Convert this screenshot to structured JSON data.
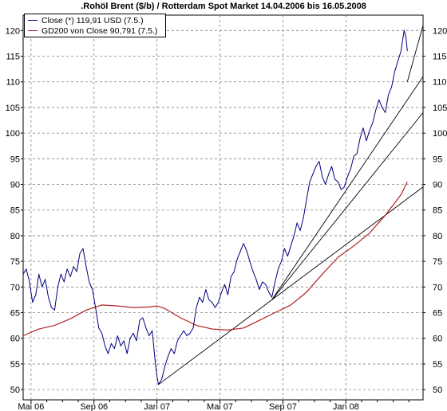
{
  "chart_data": {
    "type": "line",
    "title": ".Rohöl Brent ($/b) / Rotterdam Spot Market 14.04.2006 bis 16.05.2008",
    "xlabel": "",
    "ylabel": "",
    "ylim": [
      48,
      123
    ],
    "xlim": [
      0,
      25.4
    ],
    "y_ticks": [
      50,
      55,
      60,
      65,
      70,
      75,
      80,
      85,
      90,
      95,
      100,
      105,
      110,
      115,
      120
    ],
    "x_ticks": [
      {
        "label": "Mai 06",
        "x": 0.5
      },
      {
        "label": "Sep 06",
        "x": 4.5
      },
      {
        "label": "Jan 07",
        "x": 8.5
      },
      {
        "label": "Mai 07",
        "x": 12.5
      },
      {
        "label": "Sep 07",
        "x": 16.5
      },
      {
        "label": "Jan 08",
        "x": 20.5
      }
    ],
    "x_minor_ticks": [
      1.5,
      2.5,
      3.5,
      5.5,
      6.5,
      7.5,
      9.5,
      10.5,
      11.5,
      13.5,
      14.5,
      15.5,
      17.5,
      18.5,
      19.5,
      21.5,
      22.5,
      23.5,
      24.5
    ],
    "grid": true,
    "legend_position": "top-left",
    "series": [
      {
        "name": "Close (*) 119,91 USD (7.5.)",
        "color": "#000080",
        "points": [
          [
            0.0,
            72.5
          ],
          [
            0.2,
            73.5
          ],
          [
            0.4,
            71.0
          ],
          [
            0.6,
            67.0
          ],
          [
            0.8,
            68.5
          ],
          [
            1.0,
            72.5
          ],
          [
            1.2,
            70.0
          ],
          [
            1.4,
            71.5
          ],
          [
            1.6,
            68.0
          ],
          [
            1.8,
            66.0
          ],
          [
            2.0,
            65.5
          ],
          [
            2.2,
            70.0
          ],
          [
            2.4,
            72.5
          ],
          [
            2.6,
            71.0
          ],
          [
            2.8,
            73.5
          ],
          [
            3.0,
            72.0
          ],
          [
            3.2,
            74.0
          ],
          [
            3.4,
            73.0
          ],
          [
            3.6,
            76.5
          ],
          [
            3.8,
            77.5
          ],
          [
            4.0,
            74.0
          ],
          [
            4.2,
            71.0
          ],
          [
            4.4,
            69.5
          ],
          [
            4.6,
            66.0
          ],
          [
            4.8,
            62.0
          ],
          [
            5.0,
            61.0
          ],
          [
            5.2,
            58.5
          ],
          [
            5.4,
            57.0
          ],
          [
            5.6,
            59.0
          ],
          [
            5.8,
            58.0
          ],
          [
            6.0,
            60.5
          ],
          [
            6.2,
            58.5
          ],
          [
            6.4,
            59.5
          ],
          [
            6.6,
            57.0
          ],
          [
            6.8,
            60.0
          ],
          [
            7.0,
            61.0
          ],
          [
            7.2,
            59.5
          ],
          [
            7.4,
            63.5
          ],
          [
            7.6,
            64.0
          ],
          [
            7.8,
            62.0
          ],
          [
            8.0,
            60.5
          ],
          [
            8.2,
            61.5
          ],
          [
            8.4,
            55.0
          ],
          [
            8.5,
            52.5
          ],
          [
            8.6,
            51.0
          ],
          [
            8.8,
            52.0
          ],
          [
            9.0,
            54.5
          ],
          [
            9.2,
            56.5
          ],
          [
            9.4,
            58.0
          ],
          [
            9.6,
            57.0
          ],
          [
            9.8,
            59.5
          ],
          [
            10.0,
            60.5
          ],
          [
            10.2,
            61.5
          ],
          [
            10.4,
            60.5
          ],
          [
            10.6,
            61.0
          ],
          [
            10.8,
            62.0
          ],
          [
            11.0,
            66.0
          ],
          [
            11.2,
            68.0
          ],
          [
            11.4,
            67.0
          ],
          [
            11.6,
            69.5
          ],
          [
            11.8,
            67.5
          ],
          [
            12.0,
            67.0
          ],
          [
            12.2,
            66.0
          ],
          [
            12.4,
            67.0
          ],
          [
            12.6,
            69.0
          ],
          [
            12.8,
            70.5
          ],
          [
            13.0,
            68.5
          ],
          [
            13.2,
            72.0
          ],
          [
            13.4,
            73.0
          ],
          [
            13.6,
            75.5
          ],
          [
            13.8,
            77.0
          ],
          [
            14.0,
            78.5
          ],
          [
            14.2,
            77.0
          ],
          [
            14.4,
            75.0
          ],
          [
            14.6,
            73.0
          ],
          [
            14.8,
            71.5
          ],
          [
            15.0,
            69.5
          ],
          [
            15.2,
            71.0
          ],
          [
            15.4,
            70.5
          ],
          [
            15.6,
            69.0
          ],
          [
            15.8,
            68.0
          ],
          [
            16.0,
            71.0
          ],
          [
            16.2,
            73.5
          ],
          [
            16.4,
            75.0
          ],
          [
            16.6,
            77.5
          ],
          [
            16.8,
            76.0
          ],
          [
            17.0,
            78.0
          ],
          [
            17.2,
            80.0
          ],
          [
            17.4,
            82.5
          ],
          [
            17.6,
            81.0
          ],
          [
            17.8,
            83.5
          ],
          [
            18.0,
            87.0
          ],
          [
            18.2,
            90.5
          ],
          [
            18.4,
            92.0
          ],
          [
            18.6,
            93.5
          ],
          [
            18.8,
            94.5
          ],
          [
            19.0,
            91.5
          ],
          [
            19.2,
            90.0
          ],
          [
            19.4,
            92.0
          ],
          [
            19.6,
            93.5
          ],
          [
            19.8,
            91.0
          ],
          [
            20.0,
            90.5
          ],
          [
            20.2,
            89.0
          ],
          [
            20.4,
            89.5
          ],
          [
            20.6,
            91.5
          ],
          [
            20.8,
            93.0
          ],
          [
            21.0,
            95.5
          ],
          [
            21.2,
            96.0
          ],
          [
            21.4,
            99.0
          ],
          [
            21.6,
            101.0
          ],
          [
            21.8,
            98.5
          ],
          [
            22.0,
            100.5
          ],
          [
            22.2,
            102.0
          ],
          [
            22.4,
            104.5
          ],
          [
            22.6,
            106.5
          ],
          [
            22.8,
            105.0
          ],
          [
            23.0,
            104.0
          ],
          [
            23.2,
            107.5
          ],
          [
            23.4,
            109.0
          ],
          [
            23.6,
            112.0
          ],
          [
            23.8,
            114.0
          ],
          [
            24.0,
            116.0
          ],
          [
            24.2,
            120.0
          ],
          [
            24.3,
            119.0
          ],
          [
            24.4,
            116.0
          ]
        ]
      },
      {
        "name": "GD200 von Close 90,791 (7.5.)",
        "color": "#b22222",
        "points": [
          [
            0.0,
            60.5
          ],
          [
            1.0,
            61.8
          ],
          [
            2.0,
            62.5
          ],
          [
            3.0,
            63.8
          ],
          [
            4.0,
            65.5
          ],
          [
            5.0,
            66.5
          ],
          [
            6.0,
            66.3
          ],
          [
            7.0,
            66.0
          ],
          [
            8.0,
            66.1
          ],
          [
            8.5,
            66.3
          ],
          [
            9.0,
            65.8
          ],
          [
            10.0,
            64.0
          ],
          [
            11.0,
            62.5
          ],
          [
            12.0,
            61.8
          ],
          [
            13.0,
            61.6
          ],
          [
            14.0,
            62.0
          ],
          [
            15.0,
            63.5
          ],
          [
            16.0,
            65.0
          ],
          [
            17.0,
            66.5
          ],
          [
            18.0,
            69.0
          ],
          [
            19.0,
            72.5
          ],
          [
            20.0,
            75.8
          ],
          [
            21.0,
            78.0
          ],
          [
            22.0,
            80.5
          ],
          [
            23.0,
            84.0
          ],
          [
            24.0,
            88.0
          ],
          [
            24.4,
            90.5
          ]
        ]
      }
    ],
    "trendlines": [
      {
        "from": [
          8.6,
          51.0
        ],
        "to": [
          25.4,
          89.5
        ]
      },
      {
        "from": [
          15.8,
          67.5
        ],
        "to": [
          25.4,
          104.0
        ]
      },
      {
        "from": [
          15.8,
          67.5
        ],
        "to": [
          25.4,
          111.0
        ]
      },
      {
        "from": [
          24.4,
          110.0
        ],
        "to": [
          25.4,
          121.0
        ]
      }
    ]
  }
}
